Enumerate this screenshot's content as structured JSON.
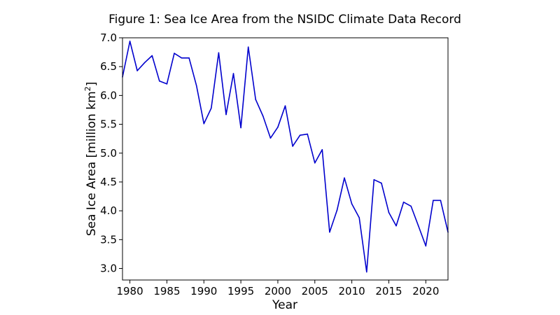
{
  "chart_data": {
    "type": "line",
    "title": "Figure 1: Sea Ice Area from the NSIDC Climate Data Record",
    "xlabel": "Year",
    "ylabel_main": "Sea Ice Area [million km",
    "ylabel_sup": "2",
    "ylabel_end": "]",
    "xlim": [
      1979,
      2023
    ],
    "ylim": [
      2.8,
      7.0
    ],
    "grid": false,
    "line_color": "#0000cd",
    "x_ticks": [
      1980,
      1985,
      1990,
      1995,
      2000,
      2005,
      2010,
      2015,
      2020
    ],
    "y_ticks": [
      "3.0",
      "3.5",
      "4.0",
      "4.5",
      "5.0",
      "5.5",
      "6.0",
      "6.5",
      "7.0"
    ],
    "x": [
      1979,
      1980,
      1981,
      1982,
      1983,
      1984,
      1985,
      1986,
      1987,
      1988,
      1989,
      1990,
      1991,
      1992,
      1993,
      1994,
      1995,
      1996,
      1997,
      1998,
      1999,
      2000,
      2001,
      2002,
      2003,
      2004,
      2005,
      2006,
      2007,
      2008,
      2009,
      2010,
      2011,
      2012,
      2013,
      2014,
      2015,
      2016,
      2017,
      2018,
      2019,
      2020,
      2021,
      2022,
      2023
    ],
    "values": [
      6.32,
      6.94,
      6.43,
      6.57,
      6.69,
      6.25,
      6.2,
      6.73,
      6.65,
      6.65,
      6.17,
      5.51,
      5.78,
      6.74,
      5.67,
      6.38,
      5.44,
      6.84,
      5.93,
      5.64,
      5.26,
      5.45,
      5.82,
      5.12,
      5.31,
      5.33,
      4.83,
      5.06,
      3.63,
      4.01,
      4.57,
      4.12,
      3.88,
      2.94,
      4.54,
      4.48,
      3.97,
      3.74,
      4.15,
      4.08,
      3.74,
      3.39,
      4.18,
      4.18,
      3.63
    ]
  }
}
